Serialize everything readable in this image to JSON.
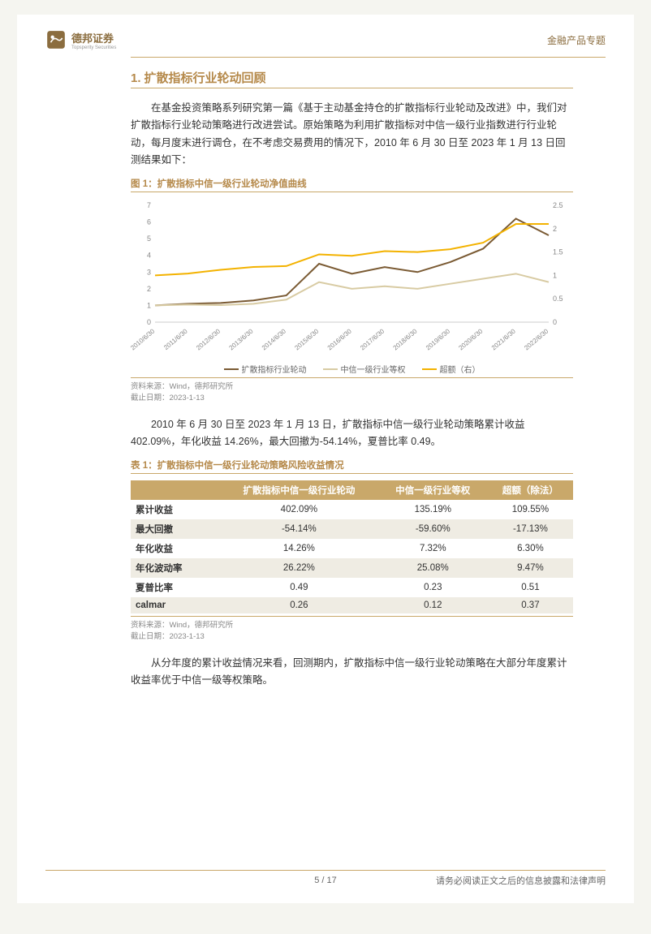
{
  "header": {
    "brand_cn": "德邦证券",
    "brand_en": "Topsperity Securities",
    "right_label": "金融产品专题"
  },
  "section": {
    "number": "1.",
    "title": "扩散指标行业轮动回顾"
  },
  "para1": "在基金投资策略系列研究第一篇《基于主动基金持仓的扩散指标行业轮动及改进》中，我们对扩散指标行业轮动策略进行改进尝试。原始策略为利用扩散指标对中信一级行业指数进行行业轮动，每月度末进行调仓，在不考虑交易费用的情况下，2010 年 6 月 30 日至 2023 年 1 月 13 日回测结果如下：",
  "figure1": {
    "title": "图 1：扩散指标中信一级行业轮动净值曲线",
    "type": "line",
    "x_labels": [
      "2010/6/30",
      "2011/6/30",
      "2012/6/30",
      "2013/6/30",
      "2014/6/30",
      "2015/6/30",
      "2016/6/30",
      "2017/6/30",
      "2018/6/30",
      "2019/6/30",
      "2020/6/30",
      "2021/6/30",
      "2022/6/30"
    ],
    "y_left": {
      "min": 0,
      "max": 7,
      "step": 1
    },
    "y_right": {
      "min": 0,
      "max": 2.5,
      "step": 0.5
    },
    "series": [
      {
        "name": "扩散指标行业轮动",
        "color": "#7a5a33",
        "axis": "left",
        "values": [
          1.0,
          1.1,
          1.15,
          1.3,
          1.6,
          3.5,
          2.9,
          3.3,
          3.0,
          3.6,
          4.4,
          6.2,
          5.2
        ]
      },
      {
        "name": "中信一级行业等权",
        "color": "#d8cba3",
        "axis": "left",
        "values": [
          1.0,
          1.05,
          1.02,
          1.1,
          1.35,
          2.4,
          2.0,
          2.15,
          2.0,
          2.3,
          2.6,
          2.9,
          2.4
        ]
      },
      {
        "name": "超额（右）",
        "color": "#f3b200",
        "axis": "right",
        "values": [
          1.0,
          1.04,
          1.12,
          1.18,
          1.2,
          1.45,
          1.42,
          1.52,
          1.5,
          1.56,
          1.7,
          2.1,
          2.1
        ]
      }
    ],
    "legend": [
      "扩散指标行业轮动",
      "中信一级行业等权",
      "超额（右）"
    ],
    "legend_colors": [
      "#7a5a33",
      "#d8cba3",
      "#f3b200"
    ],
    "background_color": "#ffffff",
    "line_width": 2
  },
  "source1": {
    "line1": "资料来源：Wind，德邦研究所",
    "line2": "截止日期：2023-1-13"
  },
  "para2": "2010 年 6 月 30 日至 2023 年 1 月 13 日，扩散指标中信一级行业轮动策略累计收益 402.09%，年化收益 14.26%，最大回撤为-54.14%，夏普比率 0.49。",
  "table1": {
    "title": "表 1：扩散指标中信一级行业轮动策略风险收益情况",
    "columns": [
      "",
      "扩散指标中信一级行业轮动",
      "中信一级行业等权",
      "超额（除法）"
    ],
    "rows": [
      [
        "累计收益",
        "402.09%",
        "135.19%",
        "109.55%"
      ],
      [
        "最大回撤",
        "-54.14%",
        "-59.60%",
        "-17.13%"
      ],
      [
        "年化收益",
        "14.26%",
        "7.32%",
        "6.30%"
      ],
      [
        "年化波动率",
        "26.22%",
        "25.08%",
        "9.47%"
      ],
      [
        "夏普比率",
        "0.49",
        "0.23",
        "0.51"
      ],
      [
        "calmar",
        "0.26",
        "0.12",
        "0.37"
      ]
    ],
    "header_bg": "#c9a86a",
    "row_alt_bg": "#efece3"
  },
  "source2": {
    "line1": "资料来源：Wind，德邦研究所",
    "line2": "截止日期：2023-1-13"
  },
  "para3": "从分年度的累计收益情况来看，回测期内，扩散指标中信一级行业轮动策略在大部分年度累计收益率优于中信一级等权策略。",
  "footer": {
    "page": "5 / 17",
    "disclaimer": "请务必阅读正文之后的信息披露和法律声明"
  }
}
